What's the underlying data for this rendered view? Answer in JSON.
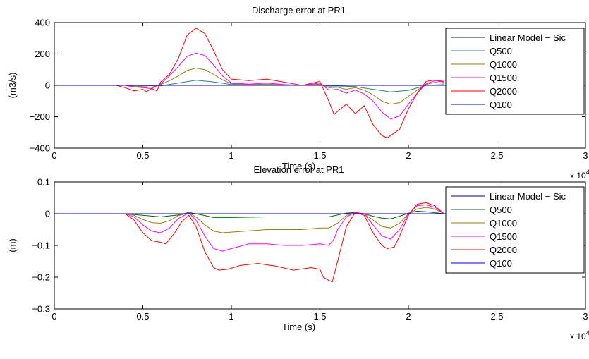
{
  "chart_data": [
    {
      "type": "line",
      "title": "Discharge error at PR1",
      "xlabel": "Time (s)",
      "ylabel": "(m3/s)",
      "x_multiplier": "x 10",
      "x_multiplier_exp": "4",
      "xlim": [
        0,
        3
      ],
      "ylim": [
        -400,
        400
      ],
      "xticks": [
        0,
        0.5,
        1,
        1.5,
        2,
        2.5,
        3
      ],
      "xtick_labels": [
        "0",
        "0.5",
        "1",
        "1.5",
        "2",
        "2.5",
        "3"
      ],
      "yticks": [
        -400,
        -200,
        0,
        200,
        400
      ],
      "ytick_labels": [
        "−400",
        "−200",
        "0",
        "200",
        "400"
      ],
      "grid": false,
      "legend_position": "top-right",
      "series": [
        {
          "name": "Linear Model − Sic",
          "color": "#00007f",
          "x": [
            0,
            2.22
          ],
          "y": [
            0,
            0
          ]
        },
        {
          "name": "Q500",
          "color": "#2e7f7f",
          "x": [
            0,
            0.4,
            0.5,
            0.6,
            0.7,
            0.8,
            0.9,
            1.0,
            1.1,
            1.2,
            1.3,
            1.4,
            1.5,
            1.55,
            1.6,
            1.7,
            1.8,
            1.9,
            2.0,
            2.1,
            2.2
          ],
          "y": [
            0,
            0,
            -2,
            -3,
            15,
            33,
            22,
            5,
            2,
            3,
            1,
            0,
            5,
            -5,
            -4,
            -8,
            -25,
            -42,
            -32,
            0,
            5
          ]
        },
        {
          "name": "Q1000",
          "color": "#9a7a10",
          "x": [
            0,
            0.4,
            0.45,
            0.5,
            0.55,
            0.6,
            0.65,
            0.7,
            0.75,
            0.8,
            0.85,
            0.9,
            0.95,
            1.0,
            1.1,
            1.2,
            1.3,
            1.4,
            1.5,
            1.55,
            1.6,
            1.65,
            1.7,
            1.75,
            1.8,
            1.85,
            1.9,
            1.95,
            2.0,
            2.05,
            2.1,
            2.15,
            2.2
          ],
          "y": [
            0,
            0,
            -5,
            -8,
            -12,
            5,
            30,
            60,
            95,
            110,
            100,
            70,
            35,
            10,
            5,
            8,
            3,
            0,
            8,
            -15,
            -12,
            -25,
            -15,
            -30,
            -60,
            -100,
            -120,
            -110,
            -70,
            -30,
            5,
            20,
            12
          ]
        },
        {
          "name": "Q1500",
          "color": "#ff00ff",
          "x": [
            0,
            0.4,
            0.45,
            0.5,
            0.55,
            0.6,
            0.65,
            0.7,
            0.75,
            0.8,
            0.85,
            0.9,
            0.95,
            1.0,
            1.1,
            1.2,
            1.3,
            1.4,
            1.5,
            1.55,
            1.6,
            1.65,
            1.7,
            1.75,
            1.8,
            1.85,
            1.9,
            1.95,
            2.0,
            2.05,
            2.1,
            2.15,
            2.2
          ],
          "y": [
            0,
            0,
            -10,
            -15,
            -20,
            10,
            60,
            120,
            185,
            205,
            190,
            130,
            60,
            15,
            8,
            15,
            5,
            0,
            15,
            -30,
            -25,
            -50,
            -30,
            -55,
            -100,
            -170,
            -215,
            -195,
            -120,
            -50,
            10,
            30,
            20
          ]
        },
        {
          "name": "Q2000",
          "color": "#ff0000",
          "x": [
            0,
            0.35,
            0.4,
            0.45,
            0.5,
            0.52,
            0.55,
            0.58,
            0.6,
            0.65,
            0.7,
            0.75,
            0.8,
            0.85,
            0.9,
            0.95,
            1.0,
            1.1,
            1.2,
            1.3,
            1.4,
            1.5,
            1.55,
            1.58,
            1.6,
            1.65,
            1.7,
            1.75,
            1.8,
            1.85,
            1.88,
            1.95,
            2.0,
            2.05,
            2.1,
            2.15,
            2.2
          ],
          "y": [
            0,
            0,
            -15,
            -35,
            -25,
            -40,
            -20,
            -35,
            20,
            70,
            170,
            320,
            365,
            330,
            220,
            100,
            40,
            30,
            40,
            20,
            0,
            25,
            -100,
            -185,
            -165,
            -120,
            -180,
            -130,
            -250,
            -320,
            -335,
            -280,
            -150,
            -50,
            25,
            35,
            25
          ]
        },
        {
          "name": "Q100",
          "color": "#0000ff",
          "x": [
            0,
            2.22
          ],
          "y": [
            0,
            0
          ]
        }
      ]
    },
    {
      "type": "line",
      "title": "Elevation error at PR1",
      "xlabel": "Time (s)",
      "ylabel": "(m)",
      "x_multiplier": "x 10",
      "x_multiplier_exp": "4",
      "xlim": [
        0,
        3
      ],
      "ylim": [
        -0.3,
        0.1
      ],
      "xticks": [
        0,
        0.5,
        1,
        1.5,
        2,
        2.5,
        3
      ],
      "xtick_labels": [
        "0",
        "0.5",
        "1",
        "1.5",
        "2",
        "2.5",
        "3"
      ],
      "yticks": [
        -0.3,
        -0.2,
        -0.1,
        0,
        0.1
      ],
      "ytick_labels": [
        "−0.3",
        "−0.2",
        "−0.1",
        "0",
        "0.1"
      ],
      "grid": false,
      "legend_position": "top-right",
      "series": [
        {
          "name": "Linear Model − Sic",
          "color": "#00007f",
          "x": [
            0,
            2.22
          ],
          "y": [
            0,
            0
          ]
        },
        {
          "name": "Q500",
          "color": "#006400",
          "x": [
            0,
            0.4,
            0.5,
            0.6,
            0.7,
            0.76,
            0.8,
            0.9,
            1.0,
            1.2,
            1.4,
            1.55,
            1.65,
            1.7,
            1.75,
            1.8,
            1.85,
            1.9,
            1.95,
            2.0,
            2.05,
            2.1,
            2.2
          ],
          "y": [
            0,
            0,
            -0.005,
            -0.01,
            -0.004,
            0.004,
            0,
            -0.012,
            -0.012,
            -0.01,
            -0.01,
            -0.01,
            0.002,
            0.004,
            0,
            -0.008,
            -0.014,
            -0.016,
            -0.008,
            0.002,
            0.008,
            0.006,
            0
          ]
        },
        {
          "name": "Q1000",
          "color": "#9a7a10",
          "x": [
            0,
            0.4,
            0.45,
            0.5,
            0.55,
            0.6,
            0.65,
            0.7,
            0.76,
            0.8,
            0.85,
            0.9,
            0.95,
            1.0,
            1.2,
            1.4,
            1.5,
            1.55,
            1.6,
            1.65,
            1.7,
            1.75,
            1.8,
            1.85,
            1.9,
            1.95,
            2.0,
            2.05,
            2.1,
            2.15,
            2.2
          ],
          "y": [
            0,
            0,
            -0.005,
            -0.018,
            -0.028,
            -0.03,
            -0.022,
            -0.006,
            0.002,
            -0.01,
            -0.035,
            -0.055,
            -0.06,
            -0.058,
            -0.05,
            -0.05,
            -0.045,
            -0.045,
            -0.03,
            -0.005,
            0.003,
            0,
            -0.02,
            -0.04,
            -0.045,
            -0.03,
            0,
            0.015,
            0.02,
            0.015,
            0
          ]
        },
        {
          "name": "Q1500",
          "color": "#ff00ff",
          "x": [
            0,
            0.4,
            0.45,
            0.5,
            0.55,
            0.6,
            0.65,
            0.7,
            0.76,
            0.8,
            0.85,
            0.9,
            0.95,
            1.0,
            1.1,
            1.2,
            1.3,
            1.4,
            1.5,
            1.55,
            1.58,
            1.6,
            1.65,
            1.7,
            1.75,
            1.8,
            1.85,
            1.9,
            1.95,
            2.0,
            2.05,
            2.1,
            2.15,
            2.2
          ],
          "y": [
            0,
            0,
            -0.01,
            -0.035,
            -0.055,
            -0.06,
            -0.045,
            -0.015,
            0.002,
            -0.02,
            -0.07,
            -0.11,
            -0.118,
            -0.11,
            -0.095,
            -0.095,
            -0.1,
            -0.1,
            -0.095,
            -0.1,
            -0.08,
            -0.05,
            -0.01,
            0.004,
            0,
            -0.035,
            -0.07,
            -0.08,
            -0.05,
            0,
            0.025,
            0.028,
            0.02,
            0
          ]
        },
        {
          "name": "Q2000",
          "color": "#ff0000",
          "x": [
            0,
            0.4,
            0.45,
            0.5,
            0.55,
            0.6,
            0.63,
            0.68,
            0.72,
            0.76,
            0.8,
            0.85,
            0.9,
            0.93,
            0.98,
            1.05,
            1.15,
            1.25,
            1.35,
            1.45,
            1.5,
            1.52,
            1.55,
            1.57,
            1.6,
            1.65,
            1.7,
            1.75,
            1.8,
            1.85,
            1.88,
            1.92,
            1.95,
            2.0,
            2.05,
            2.1,
            2.15,
            2.2
          ],
          "y": [
            0,
            0,
            -0.02,
            -0.06,
            -0.085,
            -0.09,
            -0.095,
            -0.06,
            -0.025,
            -0.005,
            -0.04,
            -0.12,
            -0.17,
            -0.178,
            -0.175,
            -0.163,
            -0.157,
            -0.165,
            -0.178,
            -0.17,
            -0.175,
            -0.2,
            -0.21,
            -0.215,
            -0.15,
            -0.04,
            0.004,
            -0.005,
            -0.06,
            -0.1,
            -0.11,
            -0.105,
            -0.07,
            -0.005,
            0.03,
            0.035,
            0.025,
            0
          ]
        },
        {
          "name": "Q100",
          "color": "#0000ff",
          "x": [
            0,
            2.22
          ],
          "y": [
            0,
            0
          ]
        }
      ]
    }
  ]
}
